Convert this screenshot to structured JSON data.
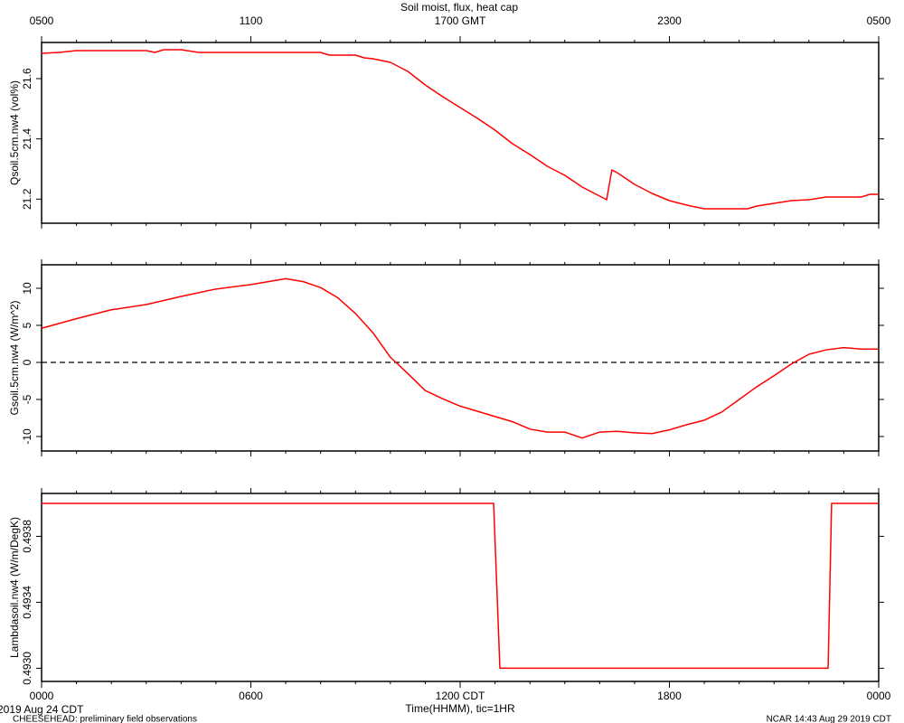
{
  "chart_data": [
    {
      "type": "line",
      "title": "Soil moist, flux, heat cap",
      "ylabel": "Qsoil.5cm.nw4 (vol%)",
      "color": "#ff0000",
      "xlim": [
        0,
        24
      ],
      "x2ticks": [
        {
          "value": 0,
          "label": "0500"
        },
        {
          "value": 6,
          "label": "1100"
        },
        {
          "value": 12,
          "label": "1700 GMT"
        },
        {
          "value": 18,
          "label": "2300"
        },
        {
          "value": 24,
          "label": "0500"
        }
      ],
      "ylim": [
        21.12,
        21.72
      ],
      "yticks": [
        21.2,
        21.4,
        21.6
      ],
      "x": [
        0,
        0.5,
        1,
        2,
        3,
        3.25,
        3.5,
        4,
        4.5,
        5,
        8,
        8.25,
        9,
        9.25,
        9.5,
        10,
        10.5,
        11,
        11.5,
        12,
        12.5,
        13,
        13.5,
        14,
        14.5,
        15,
        15.5,
        16,
        16.2,
        16.35,
        16.5,
        17,
        17.5,
        18,
        18.5,
        19,
        19.5,
        20,
        20.25,
        20.5,
        21,
        21.5,
        22,
        22.5,
        23,
        23.5,
        23.75,
        24
      ],
      "values": [
        21.684,
        21.687,
        21.693,
        21.693,
        21.693,
        21.687,
        21.696,
        21.696,
        21.687,
        21.687,
        21.687,
        21.678,
        21.678,
        21.669,
        21.666,
        21.654,
        21.624,
        21.579,
        21.54,
        21.504,
        21.468,
        21.429,
        21.384,
        21.348,
        21.309,
        21.279,
        21.24,
        21.21,
        21.198,
        21.297,
        21.288,
        21.249,
        21.219,
        21.195,
        21.18,
        21.168,
        21.168,
        21.168,
        21.168,
        21.177,
        21.186,
        21.195,
        21.198,
        21.207,
        21.207,
        21.207,
        21.216,
        21.216
      ]
    },
    {
      "type": "line",
      "ylabel": "Gsoil.5cm.nw4 (W/m^2)",
      "color": "#ff0000",
      "zero_line": true,
      "xlim": [
        0,
        24
      ],
      "ylim": [
        -11.95,
        13.17
      ],
      "yticks": [
        -10,
        -5,
        0,
        5,
        10
      ],
      "x": [
        0,
        1,
        2,
        3,
        4,
        5,
        6,
        6.5,
        7,
        7.5,
        8,
        8.5,
        9,
        9.5,
        10,
        10.5,
        11,
        11.5,
        12,
        12.5,
        13,
        13.5,
        14,
        14.5,
        15,
        15.5,
        16,
        16.5,
        17,
        17.5,
        18,
        18.5,
        19,
        19.5,
        20,
        20.5,
        21,
        21.5,
        22,
        22.5,
        23,
        23.5,
        24
      ],
      "values": [
        4.6,
        5.9,
        7.1,
        7.8,
        8.9,
        9.9,
        10.5,
        10.9,
        11.3,
        10.9,
        10.1,
        8.7,
        6.6,
        4.0,
        0.7,
        -1.5,
        -3.8,
        -4.9,
        -5.9,
        -6.6,
        -7.3,
        -8.0,
        -9.0,
        -9.4,
        -9.4,
        -10.2,
        -9.4,
        -9.3,
        -9.5,
        -9.6,
        -9.1,
        -8.4,
        -7.8,
        -6.7,
        -5.0,
        -3.3,
        -1.8,
        -0.2,
        1.1,
        1.7,
        2.0,
        1.8,
        1.8
      ]
    },
    {
      "type": "line",
      "ylabel": "Lambdasoil.nw4 (W/m/DegK)",
      "xlabel": "Time(HHMM), tic=1HR",
      "color": "#ff0000",
      "annotations": [
        "2019 Aug 24 CDT",
        "CHEESEHEAD: preliminary field observations",
        "NCAR 14:43 Aug 29 2019 CDT"
      ],
      "xlim": [
        0,
        24
      ],
      "xticks": [
        {
          "value": 0,
          "label": "0000"
        },
        {
          "value": 6,
          "label": "0600"
        },
        {
          "value": 12,
          "label": "1200 CDT"
        },
        {
          "value": 18,
          "label": "1800"
        },
        {
          "value": 24,
          "label": "0000"
        }
      ],
      "ylim": [
        0.49292,
        0.49406
      ],
      "yticks": [
        {
          "value": 0.493,
          "label": "0.4930"
        },
        0.4934,
        0.4938
      ],
      "x": [
        0,
        12.96,
        13.14,
        22.55,
        22.65,
        24
      ],
      "values": [
        0.494,
        0.494,
        0.493,
        0.493,
        0.494,
        0.494
      ]
    }
  ]
}
